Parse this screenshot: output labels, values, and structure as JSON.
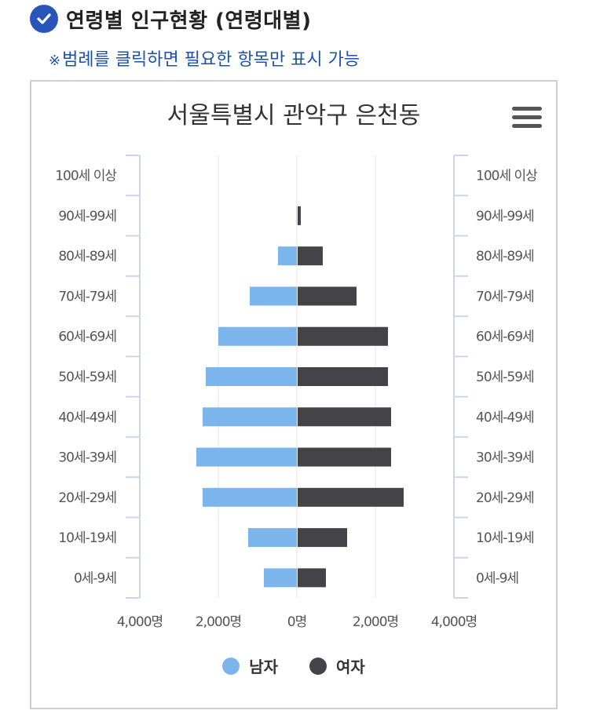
{
  "section": {
    "title": "연령별 인구현황 (연령대별)",
    "notice_mark": "※",
    "notice": "범례를 클릭하면 필요한 항목만 표시 가능"
  },
  "icons": {
    "check": "check-circle-icon",
    "menu": "hamburger-menu-icon"
  },
  "colors": {
    "male": "#7cb5ec",
    "female": "#434348",
    "axis": "#ccd6eb",
    "grid": "#e6e6e6",
    "accent": "#2a55b8",
    "notice": "#1c53a8"
  },
  "chart_data": {
    "type": "bar",
    "orientation": "horizontal",
    "layout": "population-pyramid",
    "title": "서울특별시 관악구 은천동",
    "categories": [
      "100세 이상",
      "90세-99세",
      "80세-89세",
      "70세-79세",
      "60세-69세",
      "50세-59세",
      "40세-49세",
      "30세-39세",
      "20세-29세",
      "10세-19세",
      "0세-9세"
    ],
    "series": [
      {
        "name": "남자",
        "values": [
          0,
          10,
          480,
          1200,
          2000,
          2320,
          2400,
          2560,
          2400,
          1240,
          840
        ]
      },
      {
        "name": "여자",
        "values": [
          0,
          80,
          640,
          1500,
          2300,
          2300,
          2380,
          2380,
          2700,
          1260,
          720
        ]
      }
    ],
    "xlim": [
      -4000,
      4000
    ],
    "xticks": [
      "4,000명",
      "2,000명",
      "0명",
      "2,000명",
      "4,000명"
    ],
    "grid": true,
    "legend": "bottom-center"
  }
}
